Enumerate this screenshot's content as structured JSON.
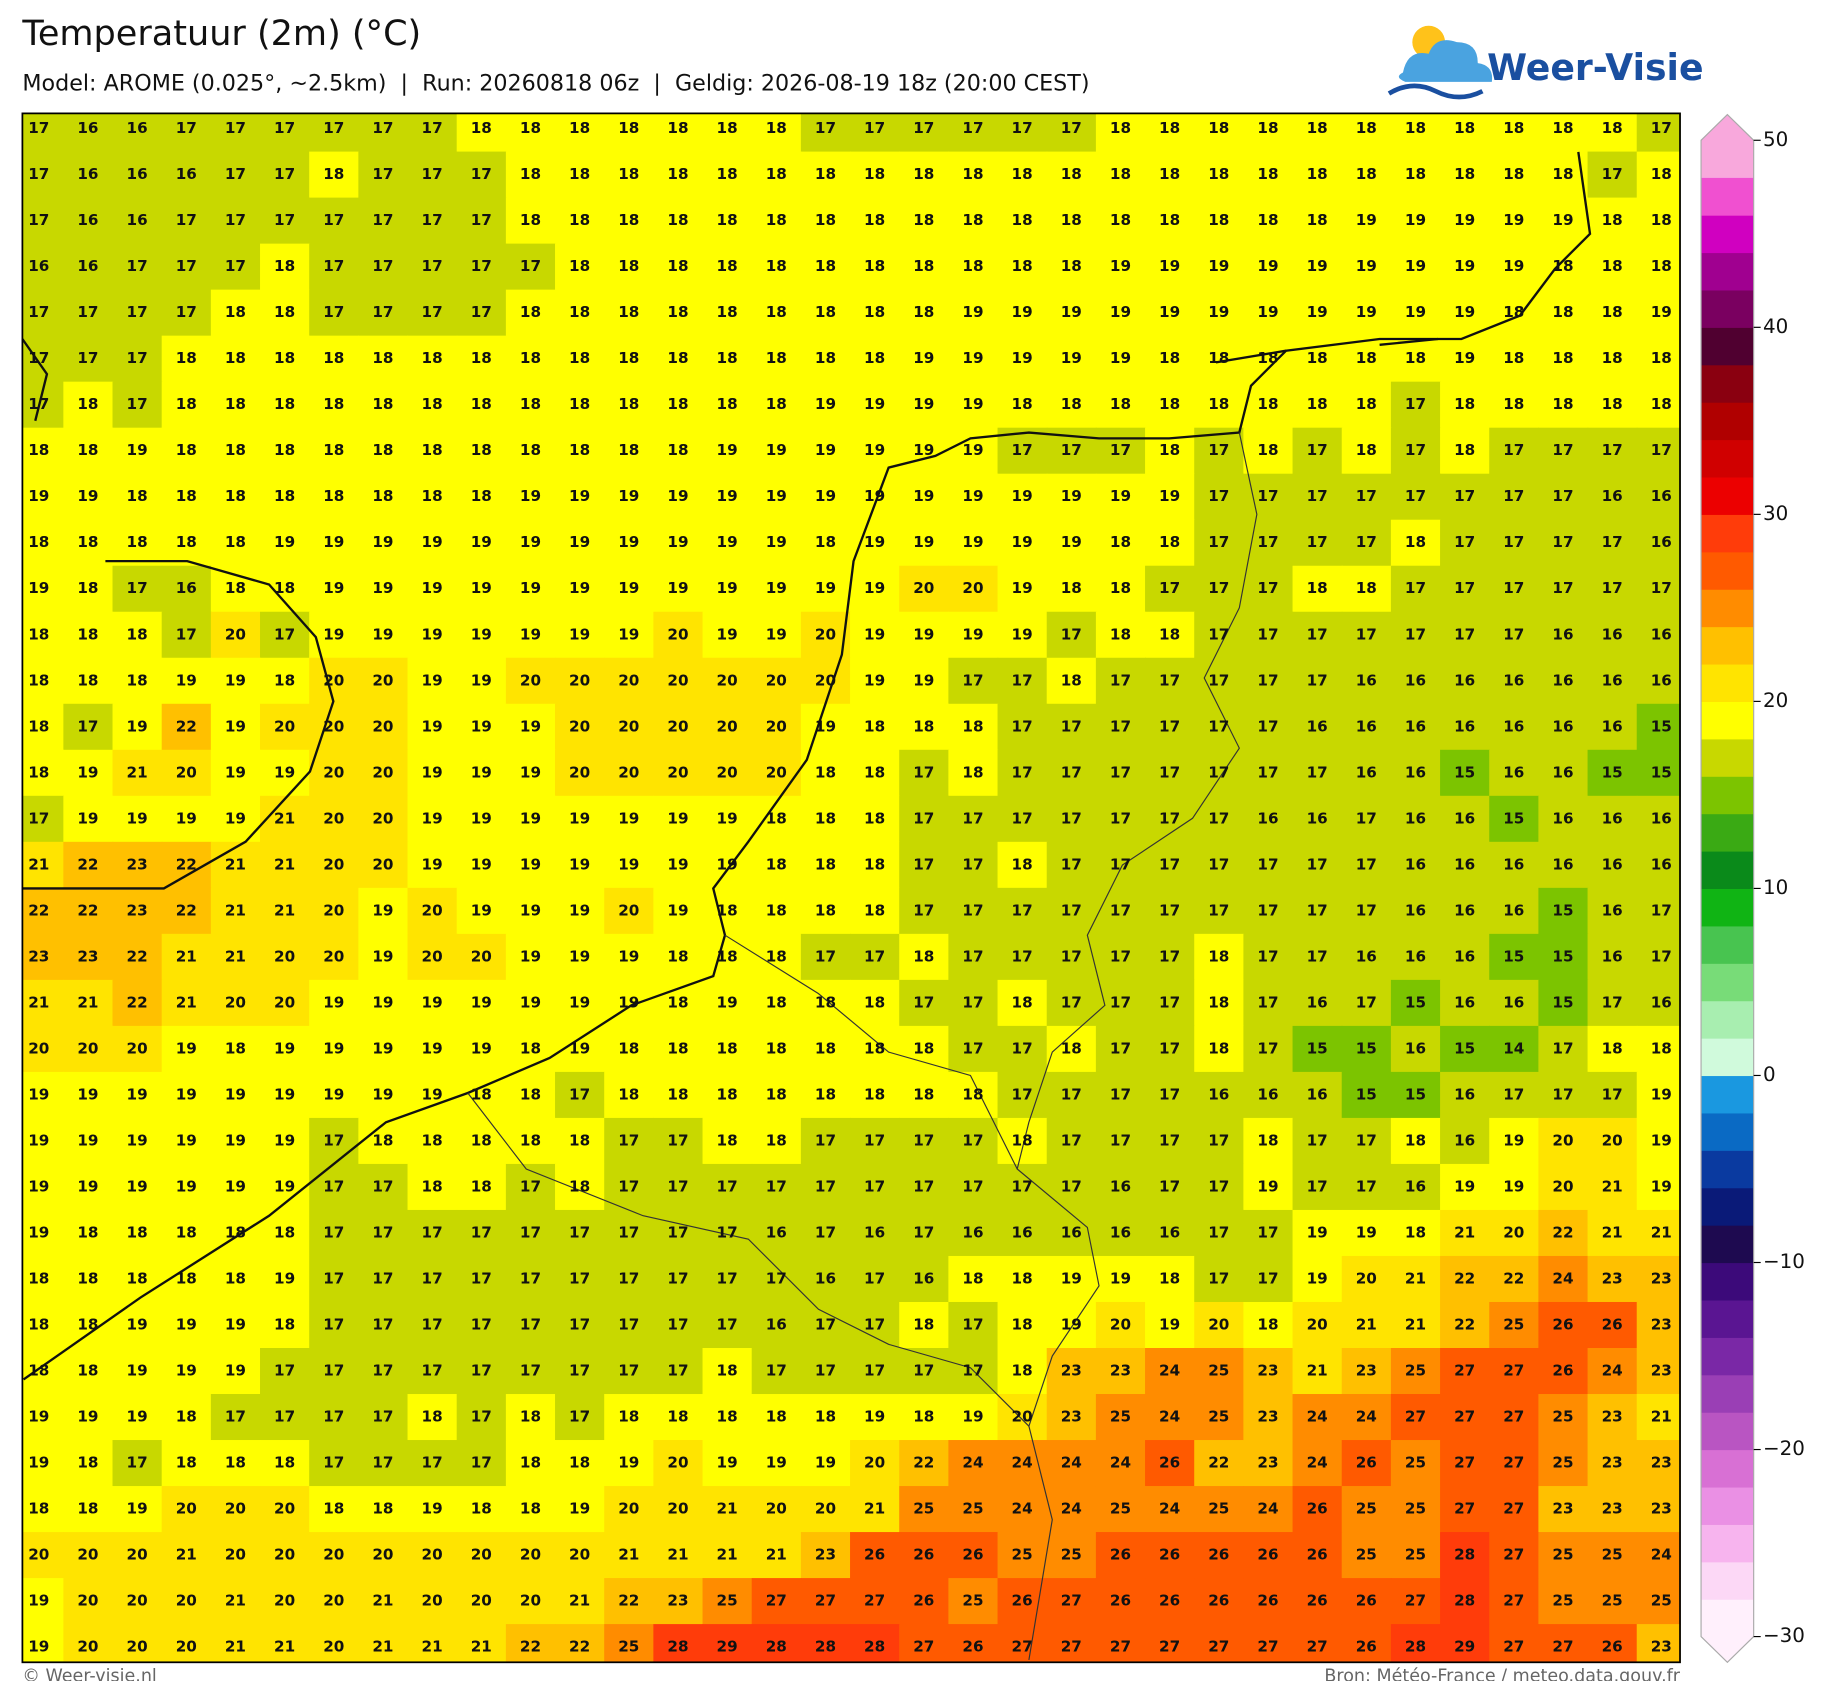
{
  "header": {
    "title": "Temperatuur (2m) (°C)",
    "subtitle": "Model: AROME (0.025°, ~2.5km)  |  Run: 20260818 06z  |  Geldig: 2026-08-19 18z (20:00 CEST)"
  },
  "logo": {
    "text": "Weer-Visie"
  },
  "grid": {
    "rows": [
      [
        17,
        16,
        16,
        17,
        17,
        17,
        17,
        17,
        17,
        18,
        18,
        18,
        18,
        18,
        18,
        18,
        17,
        17,
        17,
        17,
        17,
        17,
        18,
        18,
        18,
        18,
        18,
        18,
        18,
        18,
        18,
        18,
        18,
        17
      ],
      [
        17,
        16,
        16,
        16,
        17,
        17,
        18,
        17,
        17,
        17,
        18,
        18,
        18,
        18,
        18,
        18,
        18,
        18,
        18,
        18,
        18,
        18,
        18,
        18,
        18,
        18,
        18,
        18,
        18,
        18,
        18,
        18,
        17,
        18
      ],
      [
        17,
        16,
        16,
        17,
        17,
        17,
        17,
        17,
        17,
        17,
        18,
        18,
        18,
        18,
        18,
        18,
        18,
        18,
        18,
        18,
        18,
        18,
        18,
        18,
        18,
        18,
        18,
        19,
        19,
        19,
        19,
        19,
        18,
        18
      ],
      [
        16,
        16,
        17,
        17,
        17,
        18,
        17,
        17,
        17,
        17,
        17,
        18,
        18,
        18,
        18,
        18,
        18,
        18,
        18,
        18,
        18,
        18,
        19,
        19,
        19,
        19,
        19,
        19,
        19,
        19,
        19,
        18,
        18,
        18
      ],
      [
        17,
        17,
        17,
        17,
        18,
        18,
        17,
        17,
        17,
        17,
        18,
        18,
        18,
        18,
        18,
        18,
        18,
        18,
        18,
        19,
        19,
        19,
        19,
        19,
        19,
        19,
        19,
        19,
        19,
        19,
        18,
        18,
        18,
        19
      ],
      [
        17,
        17,
        17,
        18,
        18,
        18,
        18,
        18,
        18,
        18,
        18,
        18,
        18,
        18,
        18,
        18,
        18,
        18,
        19,
        19,
        19,
        19,
        19,
        18,
        18,
        18,
        18,
        18,
        18,
        19,
        18,
        18,
        18,
        18
      ],
      [
        17,
        18,
        17,
        18,
        18,
        18,
        18,
        18,
        18,
        18,
        18,
        18,
        18,
        18,
        18,
        18,
        19,
        19,
        19,
        19,
        18,
        18,
        18,
        18,
        18,
        18,
        18,
        18,
        17,
        18,
        18,
        18,
        18,
        18
      ],
      [
        18,
        18,
        19,
        18,
        18,
        18,
        18,
        18,
        18,
        18,
        18,
        18,
        18,
        18,
        19,
        19,
        19,
        19,
        19,
        19,
        17,
        17,
        17,
        18,
        17,
        18,
        17,
        18,
        17,
        18,
        17,
        17,
        17,
        17
      ],
      [
        19,
        19,
        18,
        18,
        18,
        18,
        18,
        18,
        18,
        18,
        19,
        19,
        19,
        19,
        19,
        19,
        19,
        19,
        19,
        19,
        19,
        19,
        19,
        19,
        17,
        17,
        17,
        17,
        17,
        17,
        17,
        17,
        16,
        16
      ],
      [
        18,
        18,
        18,
        18,
        18,
        19,
        19,
        19,
        19,
        19,
        19,
        19,
        19,
        19,
        19,
        19,
        18,
        19,
        19,
        19,
        19,
        19,
        18,
        18,
        17,
        17,
        17,
        17,
        18,
        17,
        17,
        17,
        17,
        16
      ],
      [
        19,
        18,
        17,
        16,
        18,
        18,
        19,
        19,
        19,
        19,
        19,
        19,
        19,
        19,
        19,
        19,
        19,
        19,
        20,
        20,
        19,
        18,
        18,
        17,
        17,
        17,
        18,
        18,
        17,
        17,
        17,
        17,
        17,
        17
      ],
      [
        18,
        18,
        18,
        17,
        20,
        17,
        19,
        19,
        19,
        19,
        19,
        19,
        19,
        20,
        19,
        19,
        20,
        19,
        19,
        19,
        19,
        17,
        18,
        18,
        17,
        17,
        17,
        17,
        17,
        17,
        17,
        16,
        16,
        16
      ],
      [
        18,
        18,
        18,
        19,
        19,
        18,
        20,
        20,
        19,
        19,
        20,
        20,
        20,
        20,
        20,
        20,
        20,
        19,
        19,
        17,
        17,
        18,
        17,
        17,
        17,
        17,
        17,
        16,
        16,
        16,
        16,
        16,
        16,
        16
      ],
      [
        18,
        17,
        19,
        22,
        19,
        20,
        20,
        20,
        19,
        19,
        19,
        20,
        20,
        20,
        20,
        20,
        19,
        18,
        18,
        18,
        17,
        17,
        17,
        17,
        17,
        17,
        16,
        16,
        16,
        16,
        16,
        16,
        16,
        15
      ],
      [
        18,
        19,
        21,
        20,
        19,
        19,
        20,
        20,
        19,
        19,
        19,
        20,
        20,
        20,
        20,
        20,
        18,
        18,
        17,
        18,
        17,
        17,
        17,
        17,
        17,
        17,
        17,
        16,
        16,
        15,
        16,
        16,
        15,
        15
      ],
      [
        17,
        19,
        19,
        19,
        19,
        21,
        20,
        20,
        19,
        19,
        19,
        19,
        19,
        19,
        19,
        18,
        18,
        18,
        17,
        17,
        17,
        17,
        17,
        17,
        17,
        16,
        16,
        17,
        16,
        16,
        15,
        16,
        16,
        16
      ],
      [
        21,
        22,
        23,
        22,
        21,
        21,
        20,
        20,
        19,
        19,
        19,
        19,
        19,
        19,
        19,
        18,
        18,
        18,
        17,
        17,
        18,
        17,
        17,
        17,
        17,
        17,
        17,
        17,
        16,
        16,
        16,
        16,
        16,
        16
      ],
      [
        22,
        22,
        23,
        22,
        21,
        21,
        20,
        19,
        20,
        19,
        19,
        19,
        20,
        19,
        18,
        18,
        18,
        18,
        17,
        17,
        17,
        17,
        17,
        17,
        17,
        17,
        17,
        17,
        16,
        16,
        16,
        15,
        16,
        17
      ],
      [
        23,
        23,
        22,
        21,
        21,
        20,
        20,
        19,
        20,
        20,
        19,
        19,
        19,
        18,
        18,
        18,
        17,
        17,
        18,
        17,
        17,
        17,
        17,
        17,
        18,
        17,
        17,
        16,
        16,
        16,
        15,
        15,
        16,
        17
      ],
      [
        21,
        21,
        22,
        21,
        20,
        20,
        19,
        19,
        19,
        19,
        19,
        19,
        19,
        18,
        19,
        18,
        18,
        18,
        17,
        17,
        18,
        17,
        17,
        17,
        18,
        17,
        16,
        17,
        15,
        16,
        16,
        15,
        17,
        16
      ],
      [
        20,
        20,
        20,
        19,
        18,
        19,
        19,
        19,
        19,
        19,
        18,
        19,
        18,
        18,
        18,
        18,
        18,
        18,
        18,
        17,
        17,
        18,
        17,
        17,
        18,
        17,
        15,
        15,
        16,
        15,
        14,
        17,
        18,
        18
      ],
      [
        19,
        19,
        19,
        19,
        19,
        19,
        19,
        19,
        19,
        18,
        18,
        17,
        18,
        18,
        18,
        18,
        18,
        18,
        18,
        18,
        17,
        17,
        17,
        17,
        16,
        16,
        16,
        15,
        15,
        16,
        17,
        17,
        17,
        19
      ],
      [
        19,
        19,
        19,
        19,
        19,
        19,
        17,
        18,
        18,
        18,
        18,
        18,
        17,
        17,
        18,
        18,
        17,
        17,
        17,
        17,
        18,
        17,
        17,
        17,
        17,
        18,
        17,
        17,
        18,
        16,
        19,
        20,
        20,
        19
      ],
      [
        19,
        19,
        19,
        19,
        19,
        19,
        17,
        17,
        18,
        18,
        17,
        18,
        17,
        17,
        17,
        17,
        17,
        17,
        17,
        17,
        17,
        17,
        16,
        17,
        17,
        19,
        17,
        17,
        16,
        19,
        19,
        20,
        21,
        19
      ],
      [
        19,
        18,
        18,
        18,
        18,
        18,
        17,
        17,
        17,
        17,
        17,
        17,
        17,
        17,
        17,
        16,
        17,
        16,
        17,
        16,
        16,
        16,
        16,
        16,
        17,
        17,
        19,
        19,
        18,
        21,
        20,
        22,
        21,
        21
      ],
      [
        18,
        18,
        18,
        18,
        18,
        19,
        17,
        17,
        17,
        17,
        17,
        17,
        17,
        17,
        17,
        17,
        16,
        17,
        16,
        18,
        18,
        19,
        19,
        18,
        17,
        17,
        19,
        20,
        21,
        22,
        22,
        24,
        23,
        23
      ],
      [
        18,
        18,
        19,
        19,
        19,
        18,
        17,
        17,
        17,
        17,
        17,
        17,
        17,
        17,
        17,
        16,
        17,
        17,
        18,
        17,
        18,
        19,
        20,
        19,
        20,
        18,
        20,
        21,
        21,
        22,
        25,
        26,
        26,
        23
      ],
      [
        18,
        18,
        19,
        19,
        19,
        17,
        17,
        17,
        17,
        17,
        17,
        17,
        17,
        17,
        18,
        17,
        17,
        17,
        17,
        17,
        18,
        23,
        23,
        24,
        25,
        23,
        21,
        23,
        25,
        27,
        27,
        26,
        24,
        23
      ],
      [
        19,
        19,
        19,
        18,
        17,
        17,
        17,
        17,
        18,
        17,
        18,
        17,
        18,
        18,
        18,
        18,
        18,
        19,
        18,
        19,
        20,
        23,
        25,
        24,
        25,
        23,
        24,
        24,
        27,
        27,
        27,
        25,
        23,
        21
      ],
      [
        19,
        18,
        17,
        18,
        18,
        18,
        17,
        17,
        17,
        17,
        18,
        18,
        19,
        20,
        19,
        19,
        19,
        20,
        22,
        24,
        24,
        24,
        24,
        26,
        22,
        23,
        24,
        26,
        25,
        27,
        27,
        25,
        23,
        23
      ],
      [
        18,
        18,
        19,
        20,
        20,
        20,
        18,
        18,
        19,
        18,
        18,
        19,
        20,
        20,
        21,
        20,
        20,
        21,
        25,
        25,
        24,
        24,
        25,
        24,
        25,
        24,
        26,
        25,
        25,
        27,
        27,
        23,
        23,
        23
      ],
      [
        20,
        20,
        20,
        21,
        20,
        20,
        20,
        20,
        20,
        20,
        20,
        20,
        21,
        21,
        21,
        21,
        23,
        26,
        26,
        26,
        25,
        25,
        26,
        26,
        26,
        26,
        26,
        25,
        25,
        28,
        27,
        25,
        25,
        24
      ],
      [
        19,
        20,
        20,
        20,
        21,
        20,
        20,
        21,
        20,
        20,
        20,
        21,
        22,
        23,
        25,
        27,
        27,
        27,
        26,
        25,
        26,
        27,
        26,
        26,
        26,
        26,
        26,
        26,
        27,
        28,
        27,
        25,
        25,
        25
      ],
      [
        19,
        20,
        20,
        20,
        21,
        21,
        20,
        21,
        21,
        21,
        22,
        22,
        25,
        28,
        29,
        28,
        28,
        28,
        27,
        26,
        27,
        27,
        27,
        27,
        27,
        27,
        27,
        26,
        28,
        29,
        27,
        27,
        26,
        23
      ]
    ]
  },
  "colorbar": {
    "lim": [
      -30,
      50
    ],
    "ticks": [
      {
        "value": -30,
        "label": "−30"
      },
      {
        "value": -20,
        "label": "−20"
      },
      {
        "value": -10,
        "label": "−10"
      },
      0,
      10,
      20,
      30,
      40,
      50
    ],
    "colors": [
      "#fff0fc",
      "#fcd8f6",
      "#f7b4ee",
      "#ea90e4",
      "#d870d4",
      "#b955c2",
      "#9a3fb5",
      "#7a28a6",
      "#5a1592",
      "#3c0a7a",
      "#1e0a50",
      "#0a1a78",
      "#0a3aa0",
      "#0a6ac4",
      "#1a98e0",
      "#d0fadc",
      "#a8eeb0",
      "#78dc78",
      "#48c450",
      "#10b414",
      "#0a8a1a",
      "#3aaa14",
      "#7cc400",
      "#c8d800",
      "#ffff00",
      "#ffe400",
      "#ffc000",
      "#ff8c00",
      "#ff5a00",
      "#ff3c0a",
      "#ec0000",
      "#d00000",
      "#b00000",
      "#8a0010",
      "#500030",
      "#7a0060",
      "#a00090",
      "#d000c0",
      "#f050d0",
      "#f8a8dc"
    ]
  },
  "footer": {
    "left": "© Weer-visie.nl",
    "right": "Bron: Météo-France / meteo.data.gouv.fr"
  }
}
